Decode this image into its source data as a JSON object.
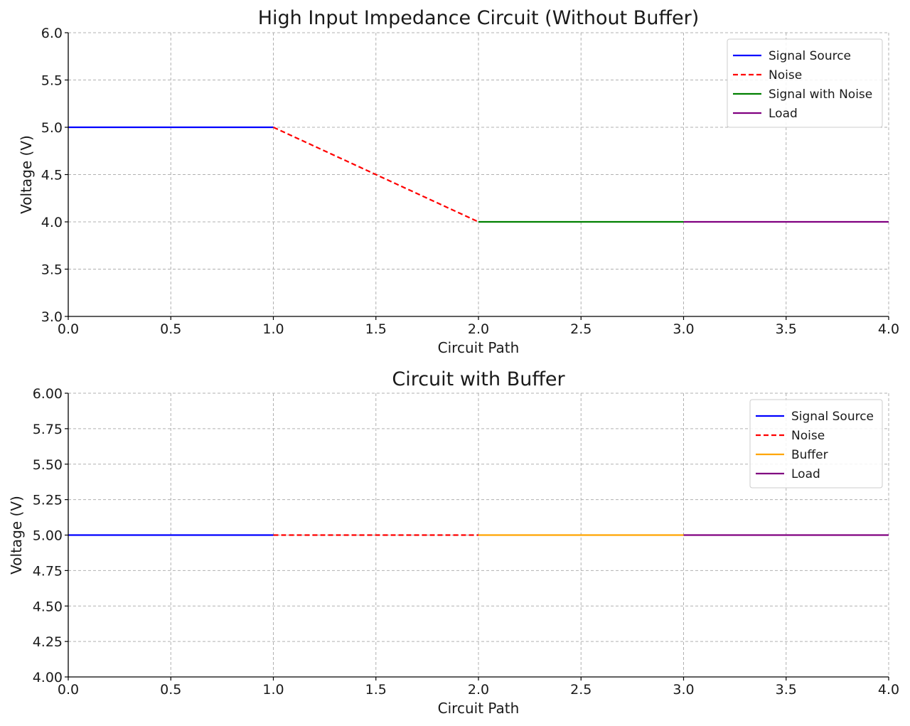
{
  "chart_data": [
    {
      "type": "line",
      "title": "High Input Impedance Circuit (Without Buffer)",
      "xlabel": "Circuit Path",
      "ylabel": "Voltage (V)",
      "xlim": [
        0,
        4
      ],
      "ylim": [
        3,
        6
      ],
      "xticks": [
        0,
        0.5,
        1,
        1.5,
        2,
        2.5,
        3,
        3.5,
        4
      ],
      "xtick_labels": [
        "0.0",
        "0.5",
        "1.0",
        "1.5",
        "2.0",
        "2.5",
        "3.0",
        "3.5",
        "4.0"
      ],
      "yticks": [
        3,
        3.5,
        4,
        4.5,
        5,
        5.5,
        6
      ],
      "ytick_labels": [
        "3.0",
        "3.5",
        "4.0",
        "4.5",
        "5.0",
        "5.5",
        "6.0"
      ],
      "grid": true,
      "legend_position": "top-right",
      "series": [
        {
          "name": "Signal Source",
          "color": "#0000ff",
          "style": "solid",
          "x": [
            0,
            1
          ],
          "y": [
            5,
            5
          ]
        },
        {
          "name": "Noise",
          "color": "#ff0000",
          "style": "dashed",
          "x": [
            1,
            2
          ],
          "y": [
            5,
            4
          ]
        },
        {
          "name": "Signal with Noise",
          "color": "#008000",
          "style": "solid",
          "x": [
            2,
            3
          ],
          "y": [
            4,
            4
          ]
        },
        {
          "name": "Load",
          "color": "#800080",
          "style": "solid",
          "x": [
            3,
            4
          ],
          "y": [
            4,
            4
          ]
        }
      ]
    },
    {
      "type": "line",
      "title": "Circuit with Buffer",
      "xlabel": "Circuit Path",
      "ylabel": "Voltage (V)",
      "xlim": [
        0,
        4
      ],
      "ylim": [
        4,
        6
      ],
      "xticks": [
        0,
        0.5,
        1,
        1.5,
        2,
        2.5,
        3,
        3.5,
        4
      ],
      "xtick_labels": [
        "0.0",
        "0.5",
        "1.0",
        "1.5",
        "2.0",
        "2.5",
        "3.0",
        "3.5",
        "4.0"
      ],
      "yticks": [
        4,
        4.25,
        4.5,
        4.75,
        5,
        5.25,
        5.5,
        5.75,
        6
      ],
      "ytick_labels": [
        "4.00",
        "4.25",
        "4.50",
        "4.75",
        "5.00",
        "5.25",
        "5.50",
        "5.75",
        "6.00"
      ],
      "grid": true,
      "legend_position": "top-right",
      "series": [
        {
          "name": "Signal Source",
          "color": "#0000ff",
          "style": "solid",
          "x": [
            0,
            1
          ],
          "y": [
            5,
            5
          ]
        },
        {
          "name": "Noise",
          "color": "#ff0000",
          "style": "dashed",
          "x": [
            1,
            2
          ],
          "y": [
            5,
            5
          ]
        },
        {
          "name": "Buffer",
          "color": "#ffa500",
          "style": "solid",
          "x": [
            2,
            3
          ],
          "y": [
            5,
            5
          ]
        },
        {
          "name": "Load",
          "color": "#800080",
          "style": "solid",
          "x": [
            3,
            4
          ],
          "y": [
            5,
            5
          ]
        }
      ]
    }
  ]
}
